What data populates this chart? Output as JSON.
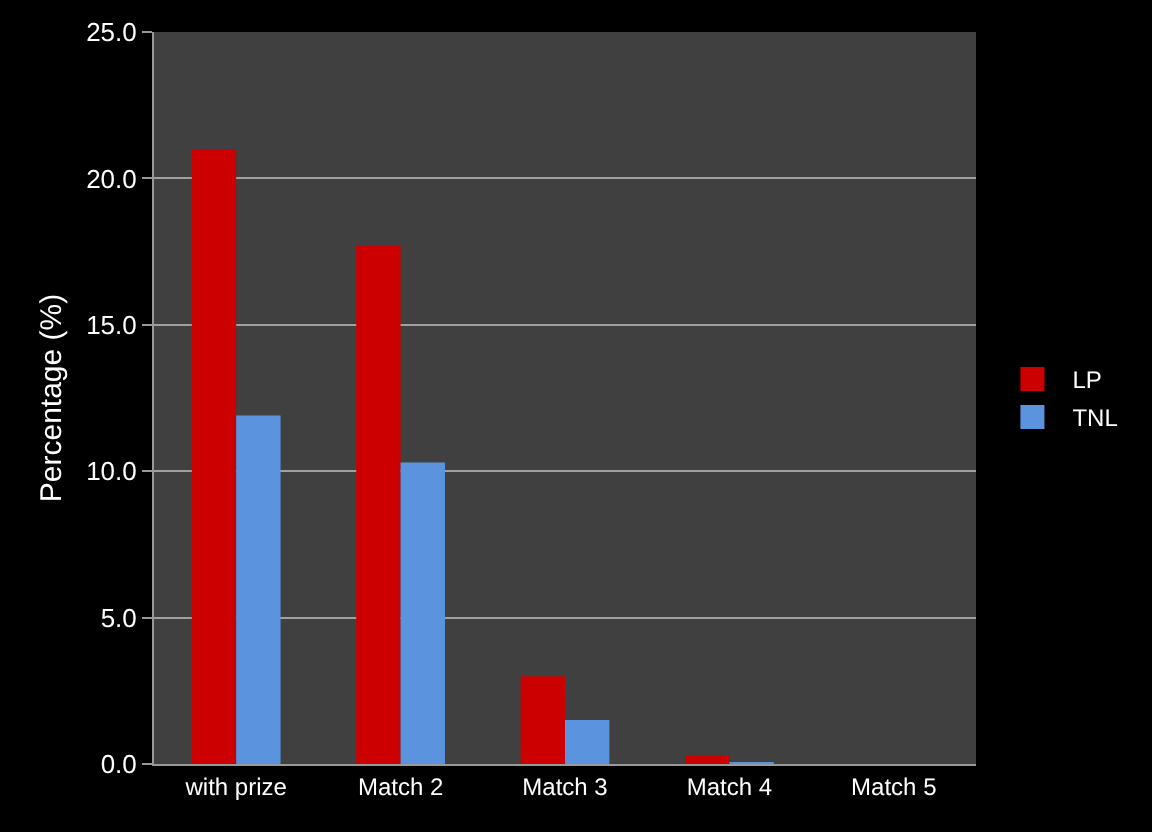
{
  "chart_data": {
    "type": "bar",
    "ylabel": "Percentage (%)",
    "categories": [
      "with prize",
      "Match 2",
      "Match 3",
      "Match 4",
      "Match 5"
    ],
    "series": [
      {
        "name": "LP",
        "color": "#cc0000",
        "values": [
          21.0,
          17.7,
          3.0,
          0.3,
          0
        ]
      },
      {
        "name": "TNL",
        "color": "#5b93de",
        "values": [
          11.9,
          10.3,
          1.5,
          0.05,
          0
        ]
      }
    ],
    "ylim": [
      0,
      25
    ],
    "yticks": [
      {
        "value": 0,
        "label": "0.0"
      },
      {
        "value": 5,
        "label": "5.0"
      },
      {
        "value": 10,
        "label": "10.0"
      },
      {
        "value": 15,
        "label": "15.0"
      },
      {
        "value": 20,
        "label": "20.0"
      },
      {
        "value": 25,
        "label": "25.0"
      }
    ],
    "grid": "y",
    "legend": "right"
  }
}
